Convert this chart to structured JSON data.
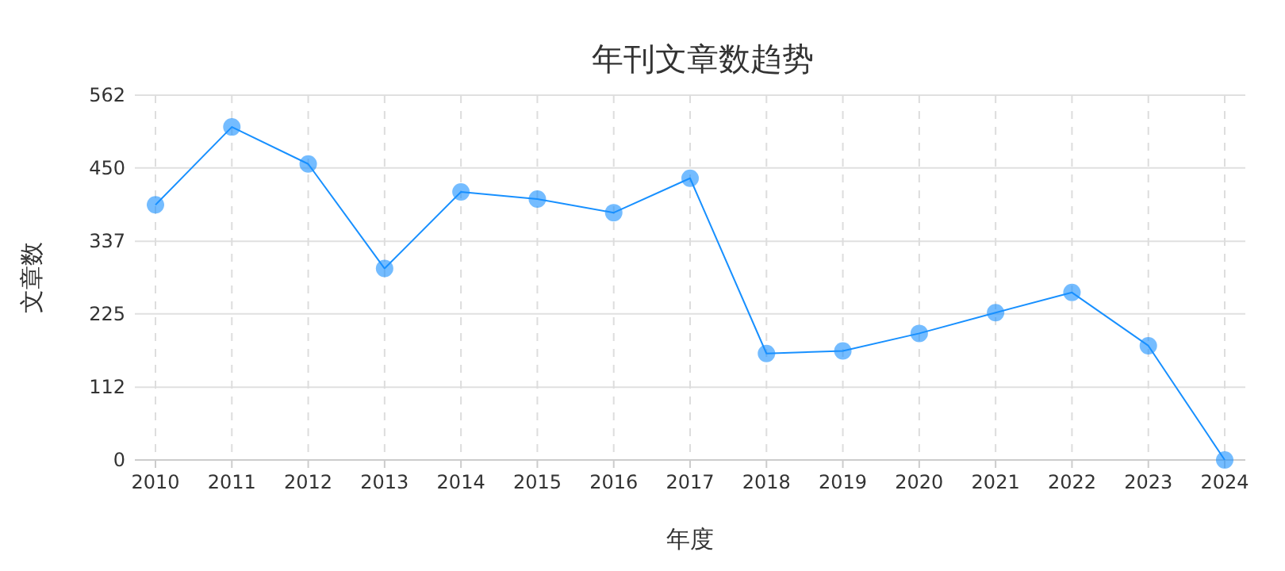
{
  "chart_data": {
    "type": "line",
    "title": "年刊文章数趋势",
    "xlabel": "年度",
    "ylabel": "文章数",
    "categories": [
      "2010",
      "2011",
      "2012",
      "2013",
      "2014",
      "2015",
      "2016",
      "2017",
      "2018",
      "2019",
      "2020",
      "2021",
      "2022",
      "2023",
      "2024"
    ],
    "series": [
      {
        "color": "#1890ff",
        "values": [
          393,
          513,
          456,
          295,
          413,
          402,
          381,
          434,
          164,
          168,
          195,
          227,
          258,
          176,
          0
        ]
      }
    ],
    "ylim": [
      0,
      562
    ],
    "yticks": [
      0,
      112,
      225,
      337,
      450,
      562
    ],
    "grid": true,
    "marker": "circle",
    "line_style": "solid"
  }
}
